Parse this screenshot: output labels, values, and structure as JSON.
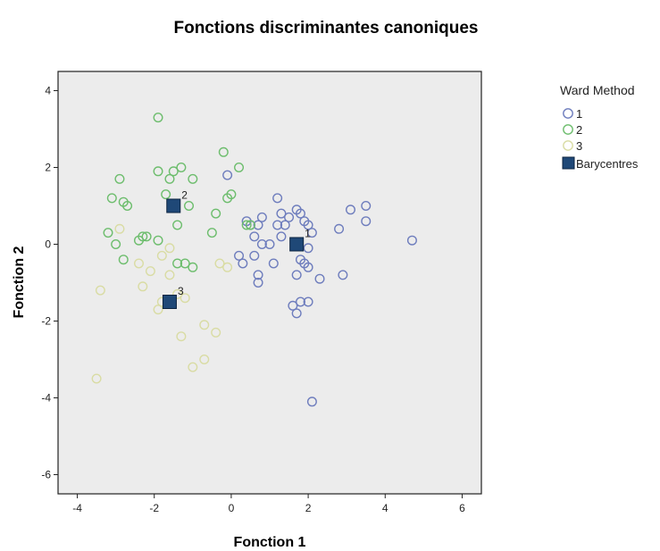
{
  "colors": {
    "plot_background": "#ececec",
    "group_1": "#6e7dbd",
    "group_2": "#6dbd6d",
    "group_3": "#d9dca4",
    "centroid_fill": "#1f4877",
    "centroid_stroke": "#0d2440"
  },
  "chart_data": {
    "type": "scatter",
    "title": "Fonctions discriminantes canoniques",
    "xlabel": "Fonction 1",
    "ylabel": "Fonction 2",
    "xlim": [
      -4.5,
      6.5
    ],
    "ylim": [
      -6.5,
      4.5
    ],
    "xticks": [
      -4,
      -2,
      0,
      2,
      4,
      6
    ],
    "yticks": [
      -6,
      -4,
      -2,
      0,
      2,
      4
    ],
    "grid": false,
    "legend": {
      "title": "Ward Method",
      "position": "right",
      "entries": [
        "1",
        "2",
        "3",
        "Barycentres"
      ]
    },
    "series": [
      {
        "name": "1",
        "marker": "open-circle",
        "points": [
          [
            -0.1,
            1.8
          ],
          [
            0.8,
            0.7
          ],
          [
            0.4,
            0.6
          ],
          [
            0.5,
            0.5
          ],
          [
            0.7,
            0.5
          ],
          [
            0.6,
            0.2
          ],
          [
            0.8,
            0.0
          ],
          [
            1.0,
            0.0
          ],
          [
            0.2,
            -0.3
          ],
          [
            0.6,
            -0.3
          ],
          [
            0.3,
            -0.5
          ],
          [
            1.2,
            1.2
          ],
          [
            1.3,
            0.8
          ],
          [
            1.5,
            0.7
          ],
          [
            1.7,
            0.9
          ],
          [
            1.8,
            0.8
          ],
          [
            1.2,
            0.5
          ],
          [
            1.4,
            0.5
          ],
          [
            1.9,
            0.6
          ],
          [
            2.0,
            0.5
          ],
          [
            2.1,
            0.3
          ],
          [
            2.0,
            -0.1
          ],
          [
            1.3,
            0.2
          ],
          [
            1.1,
            -0.5
          ],
          [
            0.7,
            -0.8
          ],
          [
            0.7,
            -1.0
          ],
          [
            1.8,
            -0.4
          ],
          [
            1.9,
            -0.5
          ],
          [
            2.0,
            -0.6
          ],
          [
            2.3,
            -0.9
          ],
          [
            1.7,
            -0.8
          ],
          [
            1.8,
            -1.5
          ],
          [
            1.6,
            -1.6
          ],
          [
            1.7,
            -1.8
          ],
          [
            2.0,
            -1.5
          ],
          [
            2.1,
            -4.1
          ],
          [
            2.8,
            0.4
          ],
          [
            3.1,
            0.9
          ],
          [
            3.5,
            1.0
          ],
          [
            3.5,
            0.6
          ],
          [
            2.9,
            -0.8
          ],
          [
            4.7,
            0.1
          ]
        ]
      },
      {
        "name": "2",
        "marker": "open-circle",
        "points": [
          [
            -1.9,
            3.3
          ],
          [
            -0.2,
            2.4
          ],
          [
            -1.5,
            1.9
          ],
          [
            -1.3,
            2.0
          ],
          [
            -1.9,
            1.9
          ],
          [
            -1.6,
            1.7
          ],
          [
            -1.0,
            1.7
          ],
          [
            0.2,
            2.0
          ],
          [
            -2.9,
            1.7
          ],
          [
            -3.1,
            1.2
          ],
          [
            -2.8,
            1.1
          ],
          [
            -2.7,
            1.0
          ],
          [
            -1.7,
            1.3
          ],
          [
            0.0,
            1.3
          ],
          [
            -0.1,
            1.2
          ],
          [
            -1.1,
            1.0
          ],
          [
            -0.4,
            0.8
          ],
          [
            -1.4,
            0.5
          ],
          [
            -2.4,
            0.1
          ],
          [
            -2.3,
            0.2
          ],
          [
            -2.2,
            0.2
          ],
          [
            -1.9,
            0.1
          ],
          [
            -3.2,
            0.3
          ],
          [
            -3.0,
            0.0
          ],
          [
            -0.5,
            0.3
          ],
          [
            -2.8,
            -0.4
          ],
          [
            0.4,
            0.5
          ],
          [
            0.5,
            0.5
          ],
          [
            -1.2,
            -0.5
          ],
          [
            -1.4,
            -0.5
          ],
          [
            -1.0,
            -0.6
          ]
        ]
      },
      {
        "name": "3",
        "marker": "open-circle",
        "points": [
          [
            -2.9,
            0.4
          ],
          [
            -2.4,
            -0.5
          ],
          [
            -2.1,
            -0.7
          ],
          [
            -3.4,
            -1.2
          ],
          [
            -2.3,
            -1.1
          ],
          [
            -1.6,
            -0.8
          ],
          [
            -1.4,
            -1.3
          ],
          [
            -1.8,
            -1.5
          ],
          [
            -1.9,
            -1.7
          ],
          [
            -1.2,
            -1.4
          ],
          [
            -0.7,
            -2.1
          ],
          [
            -1.3,
            -2.4
          ],
          [
            -0.4,
            -2.3
          ],
          [
            -0.7,
            -3.0
          ],
          [
            -1.0,
            -3.2
          ],
          [
            -3.5,
            -3.5
          ],
          [
            -0.3,
            -0.5
          ],
          [
            -0.1,
            -0.6
          ],
          [
            -1.8,
            -0.3
          ],
          [
            -1.6,
            -0.1
          ]
        ]
      }
    ],
    "centroids": [
      {
        "label": "1",
        "x": 1.7,
        "y": 0.0
      },
      {
        "label": "2",
        "x": -1.5,
        "y": 1.0
      },
      {
        "label": "3",
        "x": -1.6,
        "y": -1.5
      }
    ]
  }
}
